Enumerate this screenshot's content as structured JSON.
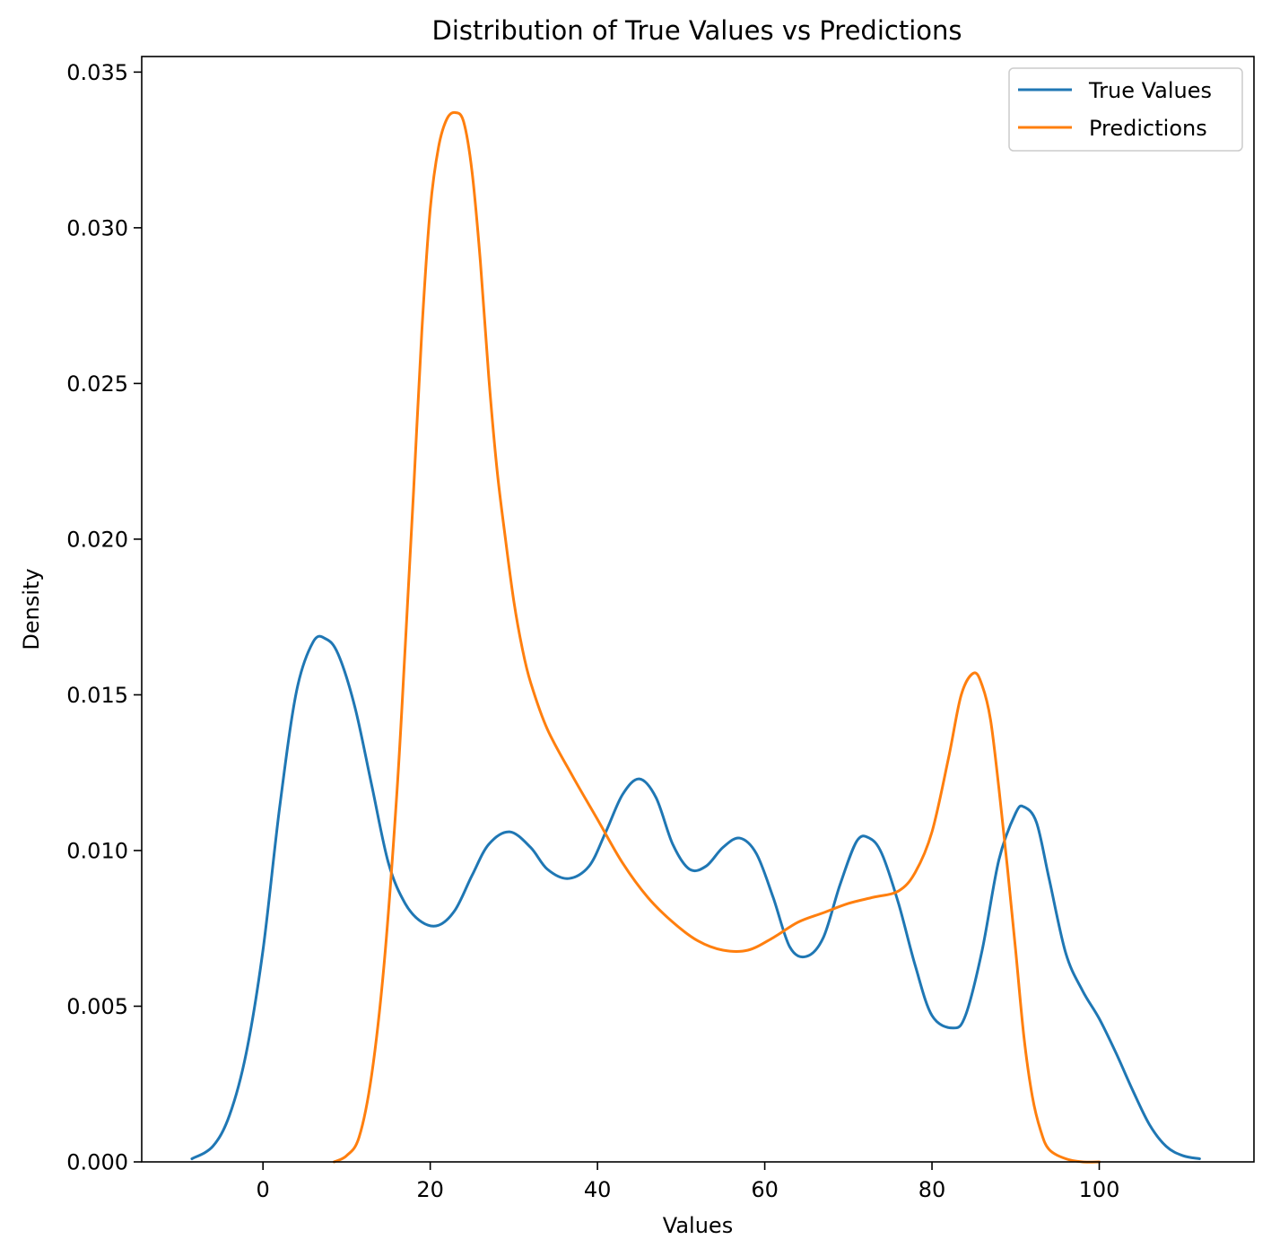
{
  "chart_data": {
    "type": "line",
    "title": "Distribution of True Values vs Predictions",
    "xlabel": "Values",
    "ylabel": "Density",
    "xlim": [
      -14.5,
      118.5
    ],
    "ylim": [
      0,
      0.0355
    ],
    "xticks": [
      0,
      20,
      40,
      60,
      80,
      100
    ],
    "yticks": [
      0.0,
      0.005,
      0.01,
      0.015,
      0.02,
      0.025,
      0.03,
      0.035
    ],
    "xtick_labels": [
      "0",
      "20",
      "40",
      "60",
      "80",
      "100"
    ],
    "ytick_labels": [
      "0.000",
      "0.005",
      "0.010",
      "0.015",
      "0.020",
      "0.025",
      "0.030",
      "0.035"
    ],
    "grid": false,
    "legend_position": "top-right",
    "series": [
      {
        "name": "True Values",
        "color": "#1f77b4",
        "x": [
          -8.5,
          -6,
          -4,
          -2,
          0,
          2,
          4,
          6,
          7.5,
          9,
          11,
          13,
          15,
          17,
          19,
          21,
          23,
          25,
          27,
          29.5,
          32,
          34,
          36.5,
          39,
          41,
          43,
          45,
          47,
          49,
          51,
          53,
          55,
          57,
          59,
          61,
          63,
          65,
          67,
          69,
          71,
          72.5,
          74,
          76,
          78,
          80,
          82.5,
          84,
          86,
          88,
          90,
          91,
          92.5,
          94,
          96,
          98,
          100,
          102,
          104,
          106,
          108,
          110,
          112
        ],
        "y": [
          0.0001,
          0.0005,
          0.0015,
          0.0035,
          0.0068,
          0.0114,
          0.0151,
          0.0167,
          0.0168,
          0.0163,
          0.0146,
          0.0121,
          0.0096,
          0.0083,
          0.0077,
          0.0076,
          0.0081,
          0.0092,
          0.0102,
          0.0106,
          0.0101,
          0.0094,
          0.0091,
          0.0095,
          0.0106,
          0.0118,
          0.0123,
          0.0117,
          0.0102,
          0.0094,
          0.0095,
          0.0101,
          0.0104,
          0.0099,
          0.0085,
          0.0069,
          0.0066,
          0.0072,
          0.0089,
          0.0103,
          0.0104,
          0.0099,
          0.0083,
          0.0063,
          0.0047,
          0.0043,
          0.0047,
          0.0068,
          0.0097,
          0.0112,
          0.0114,
          0.0109,
          0.0091,
          0.0067,
          0.0055,
          0.0046,
          0.0035,
          0.0023,
          0.0012,
          0.0005,
          0.0002,
          0.0001
        ]
      },
      {
        "name": "Predictions",
        "color": "#ff7f0e",
        "x": [
          8.5,
          10,
          11.5,
          13,
          14.5,
          16,
          17,
          18,
          19,
          20,
          21,
          22,
          23,
          24,
          25,
          26,
          27,
          28,
          29,
          30,
          31,
          32,
          34,
          37,
          40,
          43,
          46,
          49,
          52,
          55,
          58,
          61,
          64,
          67,
          70,
          73,
          76,
          78,
          80,
          82,
          83.5,
          85,
          86,
          87,
          88,
          89,
          90,
          91,
          92,
          93,
          94,
          96,
          98,
          100
        ],
        "y": [
          0.0,
          0.0002,
          0.0008,
          0.0028,
          0.0064,
          0.0118,
          0.0165,
          0.0215,
          0.0267,
          0.0306,
          0.0326,
          0.0335,
          0.0337,
          0.0334,
          0.0318,
          0.0289,
          0.0252,
          0.0222,
          0.02,
          0.018,
          0.0165,
          0.0154,
          0.0139,
          0.0124,
          0.011,
          0.0096,
          0.0085,
          0.0077,
          0.0071,
          0.0068,
          0.0068,
          0.0072,
          0.0077,
          0.008,
          0.0083,
          0.0085,
          0.0087,
          0.0093,
          0.0106,
          0.013,
          0.015,
          0.0157,
          0.0153,
          0.0142,
          0.012,
          0.0095,
          0.0068,
          0.004,
          0.0021,
          0.001,
          0.0004,
          0.0001,
          0.0,
          0.0
        ]
      }
    ]
  }
}
